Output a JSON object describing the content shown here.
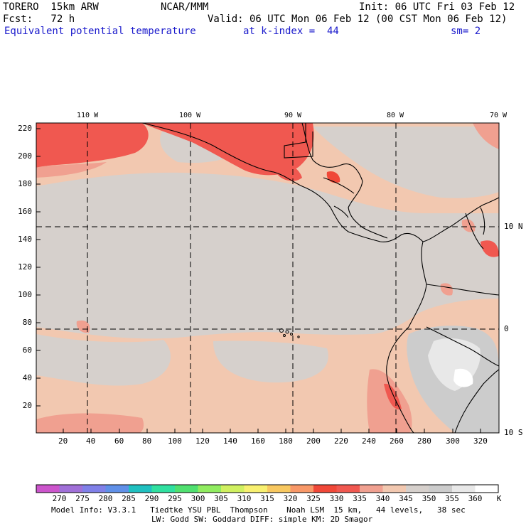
{
  "header": {
    "model": "TORERO  15km ARW",
    "org": "NCAR/MMM",
    "init": "Init: 06 UTC Fri 03 Feb 12",
    "fcst": "Fcst:   72 h",
    "valid": "Valid: 06 UTC Mon 06 Feb 12 (00 CST Mon 06 Feb 12)",
    "field": "Equivalent potential temperature",
    "level": "at k-index =  44",
    "smooth": "sm= 2"
  },
  "map": {
    "lon_labels": [
      "110 W",
      "100 W",
      "90 W",
      "80 W",
      "70 W"
    ],
    "lat_labels": [
      "10 N",
      "0",
      "10 S"
    ],
    "x_ticks": [
      "20",
      "40",
      "60",
      "80",
      "100",
      "120",
      "140",
      "160",
      "180",
      "200",
      "220",
      "240",
      "260",
      "280",
      "300",
      "320"
    ],
    "y_ticks": [
      "220",
      "200",
      "180",
      "160",
      "140",
      "120",
      "100",
      "80",
      "60",
      "40",
      "20"
    ]
  },
  "colorbar": {
    "unit": "K",
    "labels": [
      "270",
      "275",
      "280",
      "285",
      "290",
      "295",
      "300",
      "305",
      "310",
      "315",
      "320",
      "325",
      "330",
      "335",
      "340",
      "345",
      "350",
      "355",
      "360"
    ],
    "colors": [
      "#cc55cc",
      "#a070d8",
      "#8080e8",
      "#6090e8",
      "#20c0c0",
      "#30e0a0",
      "#50e070",
      "#90ec60",
      "#d0f060",
      "#f8f070",
      "#f8c860",
      "#f89868",
      "#f04838",
      "#f05850",
      "#f0a090",
      "#f2c8b0",
      "#d6d0cc",
      "#cccccc",
      "#e8e8e8",
      "#ffffff"
    ]
  },
  "footer": {
    "line1": "Model Info: V3.3.1   Tiedtke YSU PBL  Thompson    Noah LSM  15 km,   44 levels,   38 sec",
    "line2": "LW: Godd SW: Goddard DIFF: simple KM: 2D Smagor"
  }
}
